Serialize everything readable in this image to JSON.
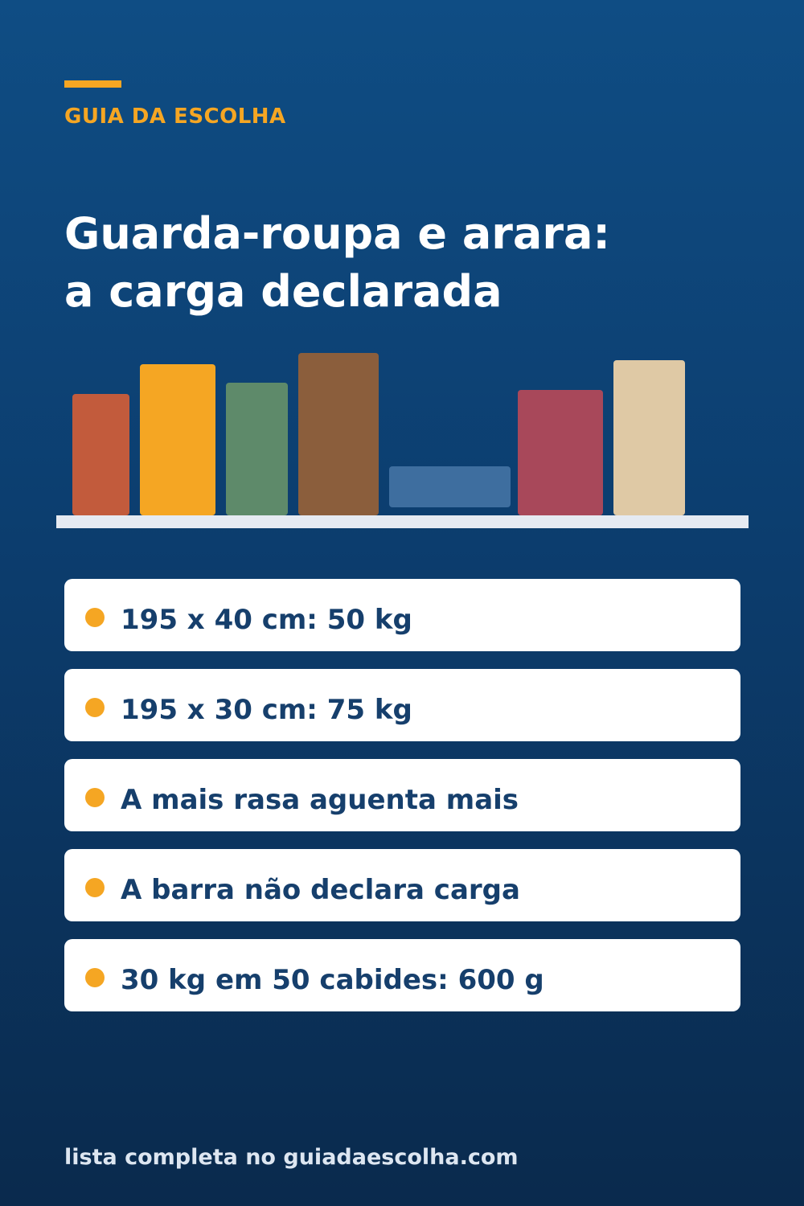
{
  "header": {
    "kicker": "GUIA DA ESCOLHA",
    "title_lines": [
      "Guarda-roupa e arara:",
      "a carga declarada"
    ]
  },
  "illustration": {
    "icon": "shelf-of-books-icon",
    "shelf_color": "#e5eaf2",
    "books": [
      {
        "color": "#c25b3c"
      },
      {
        "color": "#f5a623"
      },
      {
        "color": "#5e8a6a"
      },
      {
        "color": "#8b5e3c"
      },
      {
        "color": "#3e6e9f"
      },
      {
        "color": "#a8485a"
      },
      {
        "color": "#dfc9a5"
      }
    ]
  },
  "cards": [
    {
      "text": "195 x 40 cm: 50 kg"
    },
    {
      "text": "195 x 30 cm: 75 kg"
    },
    {
      "text": "A mais rasa aguenta mais"
    },
    {
      "text": "A barra não declara carga"
    },
    {
      "text": "30 kg em 50 cabides: 600 g"
    }
  ],
  "footer": {
    "text": "lista completa no guiadaescolha.com"
  },
  "colors": {
    "accent": "#f5a623",
    "background_top": "#0f4d84",
    "background_bottom": "#0a2a4d",
    "card_text": "#163f6c"
  }
}
